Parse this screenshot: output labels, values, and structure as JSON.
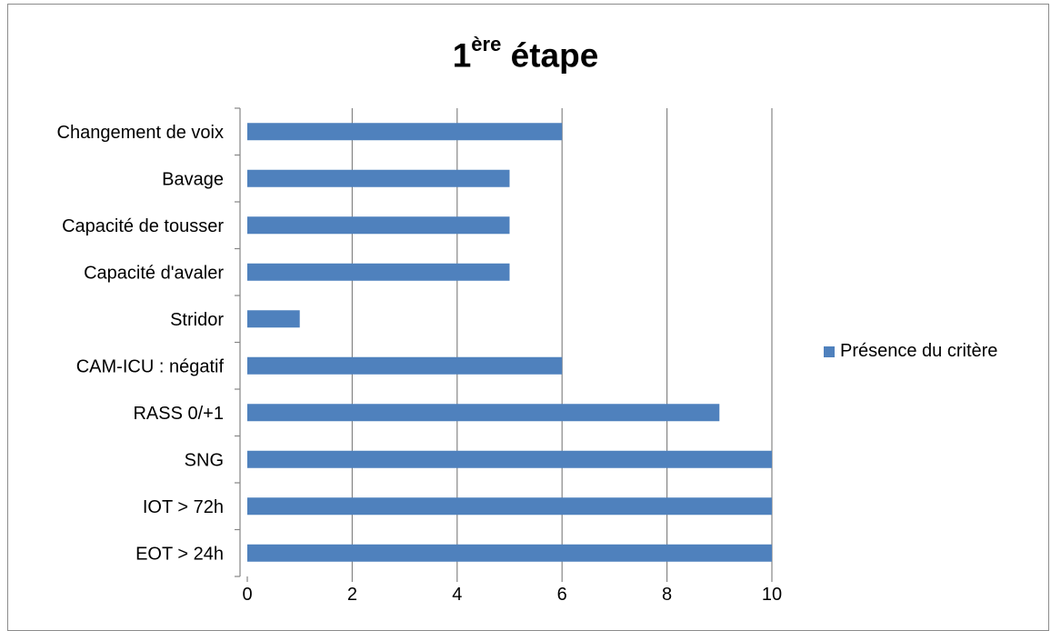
{
  "chart_data": {
    "type": "bar",
    "orientation": "horizontal",
    "title": {
      "main": "1",
      "superscript": "ère",
      "rest": " étape"
    },
    "categories": [
      "Changement de voix",
      "Bavage",
      "Capacité de tousser",
      "Capacité d'avaler",
      "Stridor",
      "CAM-ICU : négatif",
      "RASS 0/+1",
      "SNG",
      "IOT > 72h",
      "EOT > 24h"
    ],
    "series": [
      {
        "name": "Présence du critère",
        "values": [
          6,
          5,
          5,
          5,
          1,
          6,
          9,
          10,
          10,
          10
        ],
        "color": "#4f81bd"
      }
    ],
    "xlim": [
      0,
      10
    ],
    "xticks": [
      "0",
      "2",
      "4",
      "6",
      "8",
      "10"
    ],
    "grid": "vertical major gridlines",
    "legend_position": "right"
  }
}
